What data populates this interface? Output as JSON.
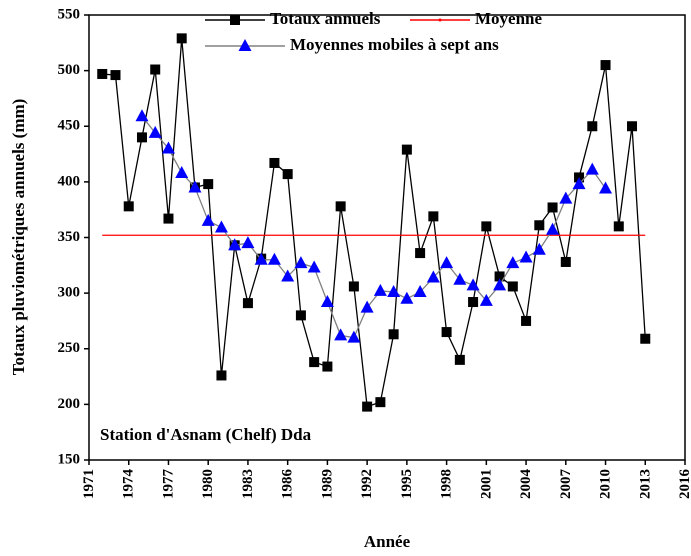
{
  "chart_data": {
    "type": "line",
    "xlabel": "Année",
    "ylabel": "Totaux pluviométriques annuels (mm)",
    "annotation": "Station d'Asnam (Chelf) Dda",
    "xlim": [
      1971,
      2016
    ],
    "xticks": [
      1971,
      1974,
      1977,
      1980,
      1983,
      1986,
      1989,
      1992,
      1995,
      1998,
      2001,
      2004,
      2007,
      2010,
      2013,
      2016
    ],
    "ylim": [
      150,
      550
    ],
    "yticks": [
      150,
      200,
      250,
      300,
      350,
      400,
      450,
      500,
      550
    ],
    "series": [
      {
        "name": "Totaux annuels",
        "color": "#000000",
        "marker": "square",
        "marker_color": "#000000",
        "x": [
          1972,
          1973,
          1974,
          1975,
          1976,
          1977,
          1978,
          1979,
          1980,
          1981,
          1982,
          1983,
          1984,
          1985,
          1986,
          1987,
          1988,
          1989,
          1990,
          1991,
          1992,
          1993,
          1994,
          1995,
          1996,
          1997,
          1998,
          1999,
          2000,
          2001,
          2002,
          2003,
          2004,
          2005,
          2006,
          2007,
          2008,
          2009,
          2010,
          2011,
          2012,
          2013
        ],
        "values": [
          497,
          496,
          378,
          440,
          501,
          367,
          529,
          395,
          398,
          226,
          343,
          291,
          331,
          417,
          407,
          280,
          238,
          234,
          378,
          306,
          198,
          202,
          263,
          429,
          336,
          369,
          265,
          240,
          292,
          360,
          315,
          306,
          275,
          361,
          377,
          328,
          404,
          450,
          505,
          360,
          450,
          259
        ]
      },
      {
        "name": "Moyenne",
        "color": "#ff0000",
        "marker": null,
        "x": [
          1972,
          2013
        ],
        "values": [
          352,
          352
        ]
      },
      {
        "name": "Moyennes mobiles à sept ans",
        "color": "#808080",
        "marker": "triangle",
        "marker_color": "#0000ff",
        "x": [
          1975,
          1976,
          1977,
          1978,
          1979,
          1980,
          1981,
          1982,
          1983,
          1984,
          1985,
          1986,
          1987,
          1988,
          1989,
          1990,
          1991,
          1992,
          1993,
          1994,
          1995,
          1996,
          1997,
          1998,
          1999,
          2000,
          2001,
          2002,
          2003,
          2004,
          2005,
          2006,
          2007,
          2008,
          2009,
          2010
        ],
        "values": [
          459,
          444,
          430,
          408,
          395,
          365,
          359,
          343,
          345,
          330,
          330,
          315,
          327,
          323,
          292,
          262,
          260,
          287,
          302,
          301,
          295,
          301,
          314,
          327,
          312,
          307,
          293,
          307,
          327,
          332,
          339,
          357,
          385,
          398,
          411,
          394
        ]
      }
    ]
  }
}
